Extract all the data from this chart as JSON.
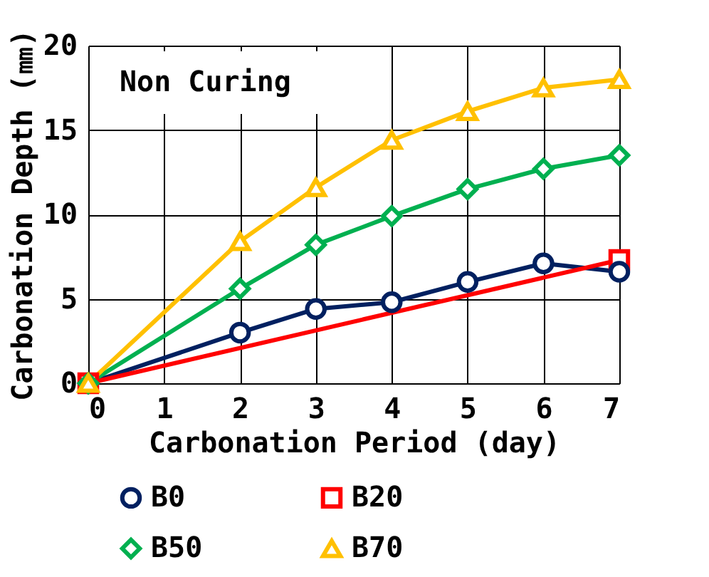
{
  "chart_data": {
    "type": "line",
    "xlabel": "Carbonation Period (day)",
    "ylabel": "Carbonation Depth (㎜)",
    "annotations": [
      "Non Curing"
    ],
    "x": [
      0,
      2,
      3,
      4,
      5,
      6,
      7
    ],
    "series": [
      {
        "name": "B0",
        "color": "#002060",
        "marker": "circle",
        "values": [
          0,
          3.0,
          4.4,
          4.8,
          6.0,
          7.1,
          6.6
        ]
      },
      {
        "name": "B20",
        "color": "#ff0000",
        "marker": "square",
        "x": [
          0,
          7
        ],
        "values": [
          0,
          7.3
        ]
      },
      {
        "name": "B50",
        "color": "#00b050",
        "marker": "diamond",
        "values": [
          0,
          5.6,
          8.2,
          9.9,
          11.5,
          12.7,
          13.5
        ]
      },
      {
        "name": "B70",
        "color": "#ffc000",
        "marker": "triangle",
        "values": [
          0,
          8.4,
          11.6,
          14.4,
          16.1,
          17.5,
          18.0
        ]
      }
    ],
    "xlim": [
      0,
      7
    ],
    "xticks": [
      0,
      1,
      2,
      3,
      4,
      5,
      6,
      7
    ],
    "ylim": [
      0,
      20
    ],
    "yticks": [
      0,
      5,
      10,
      15,
      20
    ],
    "grid": true,
    "legend": "bottom",
    "line_style": "solid"
  }
}
